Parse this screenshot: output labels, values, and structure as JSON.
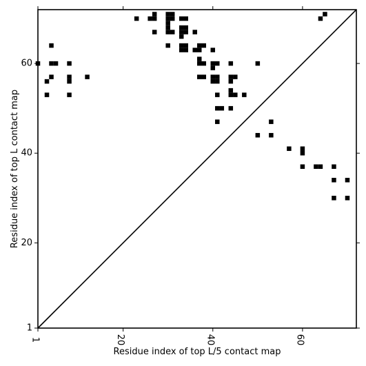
{
  "chart_data": {
    "type": "heatmap",
    "xlabel": "Residue index of top L/5 contact map",
    "ylabel": "Residue index of top L contact map",
    "xlim": [
      1,
      72
    ],
    "ylim": [
      1,
      72
    ],
    "x_ticks": [
      1,
      20,
      40,
      60
    ],
    "y_ticks": [
      1,
      20,
      40,
      60
    ],
    "grid": false,
    "cell_color": "#000000",
    "diagonal": true,
    "upper_triangle_contacts": [
      [
        1,
        60
      ],
      [
        4,
        64
      ],
      [
        4,
        60
      ],
      [
        5,
        60
      ],
      [
        4,
        57
      ],
      [
        8,
        60
      ],
      [
        3,
        56
      ],
      [
        8,
        57
      ],
      [
        8,
        56
      ],
      [
        3,
        53
      ],
      [
        8,
        53
      ],
      [
        12,
        57
      ],
      [
        23,
        70
      ],
      [
        26,
        70
      ],
      [
        27,
        71
      ],
      [
        27,
        70
      ],
      [
        27,
        67
      ],
      [
        30,
        71
      ],
      [
        31,
        71
      ],
      [
        30,
        70
      ],
      [
        31,
        70
      ],
      [
        30,
        69
      ],
      [
        30,
        68
      ],
      [
        30,
        67
      ],
      [
        31,
        67
      ],
      [
        30,
        64
      ],
      [
        33,
        70
      ],
      [
        34,
        70
      ],
      [
        33,
        68
      ],
      [
        34,
        68
      ],
      [
        33,
        67
      ],
      [
        34,
        67
      ],
      [
        33,
        66
      ],
      [
        33,
        64
      ],
      [
        34,
        64
      ],
      [
        33,
        63
      ],
      [
        34,
        63
      ],
      [
        36,
        67
      ],
      [
        36,
        63
      ],
      [
        37,
        63
      ],
      [
        37,
        64
      ],
      [
        38,
        64
      ],
      [
        37,
        61
      ],
      [
        37,
        60
      ],
      [
        38,
        60
      ],
      [
        37,
        57
      ],
      [
        38,
        57
      ],
      [
        40,
        63
      ],
      [
        40,
        60
      ],
      [
        41,
        60
      ],
      [
        40,
        59
      ],
      [
        40,
        57
      ],
      [
        41,
        57
      ],
      [
        40,
        56
      ],
      [
        41,
        56
      ],
      [
        41,
        53
      ],
      [
        41,
        50
      ],
      [
        42,
        50
      ],
      [
        41,
        47
      ],
      [
        44,
        60
      ],
      [
        44,
        57
      ],
      [
        45,
        57
      ],
      [
        44,
        56
      ],
      [
        44,
        54
      ],
      [
        44,
        53
      ],
      [
        45,
        53
      ],
      [
        44,
        50
      ],
      [
        47,
        53
      ],
      [
        50,
        60
      ],
      [
        50,
        44
      ],
      [
        53,
        47
      ],
      [
        53,
        44
      ],
      [
        57,
        41
      ],
      [
        60,
        41
      ],
      [
        60,
        40
      ],
      [
        60,
        37
      ],
      [
        63,
        37
      ],
      [
        64,
        37
      ],
      [
        64,
        70
      ],
      [
        65,
        71
      ],
      [
        67,
        37
      ],
      [
        67,
        34
      ],
      [
        70,
        34
      ],
      [
        67,
        30
      ],
      [
        70,
        30
      ]
    ]
  }
}
